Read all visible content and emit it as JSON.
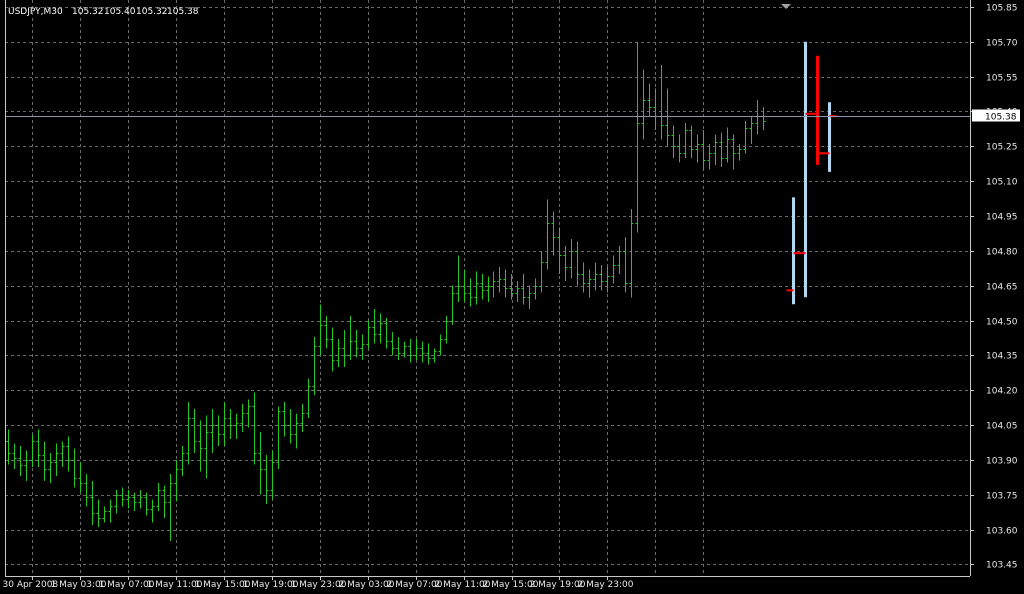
{
  "header": {
    "symbol": "USDJPY,M30",
    "open": "105.32",
    "high": "105.40",
    "low": "105.32",
    "close": "105.38"
  },
  "current_price": {
    "value": 105.38,
    "label": "105.38"
  },
  "colors": {
    "background": "#000000",
    "grid": "#6a6a6a",
    "bars": "#22c81e",
    "highlight_blue": "#b0d8f0",
    "highlight_red": "#ff0000",
    "current_box": "#ffffff"
  },
  "chart_data": {
    "type": "bar",
    "style": "ohlc",
    "grid": true,
    "ylim": [
      103.4,
      105.88
    ],
    "yticks": [
      "105.85",
      "105.70",
      "105.55",
      "105.40",
      "105.25",
      "105.10",
      "104.95",
      "104.80",
      "104.65",
      "104.50",
      "104.35",
      "104.20",
      "104.05",
      "103.90",
      "103.75",
      "103.60",
      "103.45"
    ],
    "xticks": [
      "30 Apr 2008",
      "1 May 03:00",
      "1 May 07:00",
      "1 May 11:00",
      "1 May 15:00",
      "1 May 19:00",
      "1 May 23:00",
      "2 May 03:00",
      "2 May 07:00",
      "2 May 11:00",
      "2 May 15:00",
      "2 May 19:00",
      "2 May 23:00"
    ],
    "bars": [
      [
        103.98,
        104.03,
        103.88,
        103.93
      ],
      [
        103.93,
        103.97,
        103.86,
        103.91
      ],
      [
        103.91,
        103.96,
        103.83,
        103.88
      ],
      [
        103.88,
        103.94,
        103.81,
        103.9
      ],
      [
        103.9,
        104.01,
        103.87,
        103.98
      ],
      [
        103.98,
        104.03,
        103.87,
        103.92
      ],
      [
        103.92,
        103.98,
        103.81,
        103.86
      ],
      [
        103.86,
        103.93,
        103.8,
        103.89
      ],
      [
        103.89,
        103.97,
        103.83,
        103.93
      ],
      [
        103.93,
        103.98,
        103.87,
        103.96
      ],
      [
        103.96,
        104.0,
        103.85,
        103.9
      ],
      [
        103.9,
        103.95,
        103.78,
        103.82
      ],
      [
        103.82,
        103.89,
        103.76,
        103.8
      ],
      [
        103.8,
        103.84,
        103.7,
        103.74
      ],
      [
        103.74,
        103.81,
        103.62,
        103.67
      ],
      [
        103.67,
        103.73,
        103.61,
        103.65
      ],
      [
        103.65,
        103.7,
        103.63,
        103.68
      ],
      [
        103.68,
        103.73,
        103.63,
        103.7
      ],
      [
        103.7,
        103.77,
        103.67,
        103.75
      ],
      [
        103.75,
        103.78,
        103.7,
        103.73
      ],
      [
        103.73,
        103.77,
        103.69,
        103.74
      ],
      [
        103.74,
        103.76,
        103.68,
        103.72
      ],
      [
        103.72,
        103.77,
        103.69,
        103.74
      ],
      [
        103.74,
        103.76,
        103.66,
        103.69
      ],
      [
        103.69,
        103.73,
        103.63,
        103.7
      ],
      [
        103.7,
        103.8,
        103.68,
        103.77
      ],
      [
        103.77,
        103.79,
        103.65,
        103.72
      ],
      [
        103.72,
        103.84,
        103.55,
        103.8
      ],
      [
        103.8,
        103.9,
        103.72,
        103.86
      ],
      [
        103.86,
        103.96,
        103.83,
        103.93
      ],
      [
        103.93,
        104.15,
        103.88,
        104.08
      ],
      [
        104.08,
        104.12,
        103.93,
        103.98
      ],
      [
        103.98,
        104.07,
        103.85,
        103.95
      ],
      [
        103.95,
        104.09,
        103.82,
        104.02
      ],
      [
        104.02,
        104.12,
        103.93,
        104.05
      ],
      [
        104.05,
        104.09,
        103.96,
        104.01
      ],
      [
        104.01,
        104.15,
        103.96,
        104.08
      ],
      [
        104.08,
        104.12,
        103.99,
        104.05
      ],
      [
        104.05,
        104.1,
        103.99,
        104.06
      ],
      [
        104.06,
        104.14,
        104.02,
        104.1
      ],
      [
        104.1,
        104.16,
        104.04,
        104.13
      ],
      [
        104.13,
        104.19,
        103.88,
        103.93
      ],
      [
        103.93,
        104.02,
        103.75,
        103.86
      ],
      [
        103.86,
        103.92,
        103.71,
        103.77
      ],
      [
        103.77,
        103.94,
        103.73,
        103.89
      ],
      [
        103.89,
        104.13,
        103.86,
        104.11
      ],
      [
        104.11,
        104.15,
        104.0,
        104.05
      ],
      [
        104.05,
        104.12,
        103.97,
        104.01
      ],
      [
        104.01,
        104.1,
        103.95,
        104.06
      ],
      [
        104.06,
        104.14,
        104.02,
        104.1
      ],
      [
        104.1,
        104.25,
        104.08,
        104.22
      ],
      [
        104.22,
        104.43,
        104.18,
        104.39
      ],
      [
        104.39,
        104.57,
        104.35,
        104.48
      ],
      [
        104.48,
        104.52,
        104.38,
        104.42
      ],
      [
        104.42,
        104.47,
        104.28,
        104.33
      ],
      [
        104.33,
        104.42,
        104.3,
        104.38
      ],
      [
        104.38,
        104.46,
        104.3,
        104.35
      ],
      [
        104.35,
        104.52,
        104.33,
        104.41
      ],
      [
        104.41,
        104.46,
        104.34,
        104.38
      ],
      [
        104.38,
        104.44,
        104.33,
        104.4
      ],
      [
        104.4,
        104.5,
        104.38,
        104.47
      ],
      [
        104.47,
        104.55,
        104.4,
        104.44
      ],
      [
        104.44,
        104.53,
        104.4,
        104.49
      ],
      [
        104.49,
        104.51,
        104.38,
        104.41
      ],
      [
        104.41,
        104.45,
        104.35,
        104.38
      ],
      [
        104.38,
        104.43,
        104.33,
        104.36
      ],
      [
        104.36,
        104.41,
        104.34,
        104.39
      ],
      [
        104.39,
        104.42,
        104.32,
        104.35
      ],
      [
        104.35,
        104.42,
        104.33,
        104.38
      ],
      [
        104.38,
        104.41,
        104.32,
        104.36
      ],
      [
        104.36,
        104.4,
        104.31,
        104.34
      ],
      [
        104.34,
        104.38,
        104.32,
        104.37
      ],
      [
        104.37,
        104.44,
        104.35,
        104.42
      ],
      [
        104.42,
        104.52,
        104.4,
        104.5
      ],
      [
        104.5,
        104.65,
        104.48,
        104.62
      ],
      [
        104.62,
        104.78,
        104.58,
        104.65
      ],
      [
        104.65,
        104.72,
        104.58,
        104.62
      ],
      [
        104.62,
        104.68,
        104.56,
        104.6
      ],
      [
        104.6,
        104.71,
        104.57,
        104.66
      ],
      [
        104.66,
        104.7,
        104.59,
        104.63
      ],
      [
        104.63,
        104.69,
        104.58,
        104.65
      ],
      [
        104.65,
        104.71,
        104.6,
        104.67
      ],
      [
        104.67,
        104.73,
        104.62,
        104.68
      ],
      [
        104.68,
        104.72,
        104.6,
        104.64
      ],
      [
        104.64,
        104.7,
        104.59,
        104.62
      ],
      [
        104.62,
        104.67,
        104.58,
        104.64
      ],
      [
        104.64,
        104.7,
        104.57,
        104.6
      ],
      [
        104.6,
        104.65,
        104.55,
        104.62
      ],
      [
        104.62,
        104.68,
        104.59,
        104.65
      ],
      [
        104.65,
        104.8,
        104.62,
        104.75
      ],
      [
        104.75,
        105.02,
        104.72,
        104.92
      ],
      [
        104.92,
        104.97,
        104.78,
        104.86
      ],
      [
        104.86,
        104.9,
        104.7,
        104.78
      ],
      [
        104.78,
        104.82,
        104.67,
        104.73
      ],
      [
        104.73,
        104.85,
        104.68,
        104.8
      ],
      [
        104.8,
        104.84,
        104.65,
        104.7
      ],
      [
        104.7,
        104.75,
        104.62,
        104.66
      ],
      [
        104.66,
        104.72,
        104.6,
        104.68
      ],
      [
        104.68,
        104.75,
        104.63,
        104.7
      ],
      [
        104.7,
        104.74,
        104.63,
        104.67
      ],
      [
        104.67,
        104.73,
        104.62,
        104.69
      ],
      [
        104.69,
        104.78,
        104.66,
        104.74
      ],
      [
        104.74,
        104.82,
        104.7,
        104.8
      ],
      [
        104.8,
        104.86,
        104.62,
        104.66
      ],
      [
        104.66,
        104.98,
        104.6,
        104.92
      ],
      [
        104.92,
        105.7,
        104.88,
        105.35
      ],
      [
        105.35,
        105.58,
        105.28,
        105.45
      ],
      [
        105.45,
        105.52,
        105.38,
        105.42
      ],
      [
        105.42,
        105.5,
        105.32,
        105.38
      ],
      [
        105.38,
        105.6,
        105.28,
        105.34
      ],
      [
        105.34,
        105.5,
        105.25,
        105.3
      ],
      [
        105.3,
        105.34,
        105.2,
        105.25
      ],
      [
        105.25,
        105.3,
        105.18,
        105.22
      ],
      [
        105.22,
        105.35,
        105.2,
        105.32
      ],
      [
        105.32,
        105.34,
        105.2,
        105.24
      ],
      [
        105.24,
        105.3,
        105.18,
        105.26
      ],
      [
        105.26,
        105.32,
        105.15,
        105.19
      ],
      [
        105.19,
        105.26,
        105.15,
        105.22
      ],
      [
        105.22,
        105.3,
        105.17,
        105.27
      ],
      [
        105.27,
        105.31,
        105.16,
        105.2
      ],
      [
        105.2,
        105.33,
        105.18,
        105.28
      ],
      [
        105.28,
        105.3,
        105.15,
        105.22
      ],
      [
        105.22,
        105.26,
        105.19,
        105.24
      ],
      [
        105.24,
        105.36,
        105.22,
        105.33
      ],
      [
        105.33,
        105.38,
        105.26,
        105.35
      ],
      [
        105.35,
        105.45,
        105.3,
        105.38
      ],
      [
        105.38,
        105.42,
        105.32,
        105.36
      ]
    ],
    "highlighted_bars": [
      {
        "index": 131,
        "color": "highlight_blue",
        "ohlc": [
          104.63,
          105.03,
          104.57,
          104.79
        ]
      },
      {
        "index": 133,
        "color": "highlight_blue",
        "ohlc": [
          104.79,
          105.7,
          104.6,
          105.39
        ]
      },
      {
        "index": 135,
        "color": "highlight_red",
        "ohlc": [
          105.39,
          105.64,
          105.17,
          105.22
        ]
      },
      {
        "index": 137,
        "color": "highlight_blue",
        "ohlc": [
          105.22,
          105.44,
          105.14,
          105.38
        ]
      }
    ],
    "bar_count_axis": 161
  }
}
